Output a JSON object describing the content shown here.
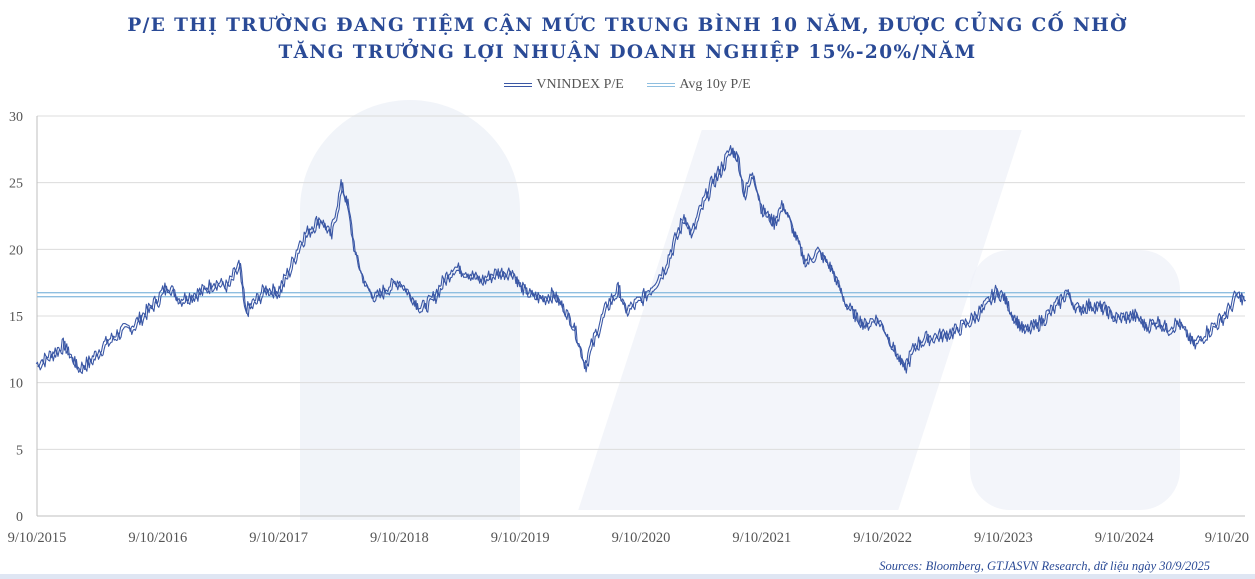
{
  "title_line1": "P/E THỊ TRƯỜNG ĐANG TIỆM CẬN MỨC TRUNG BÌNH 10 NĂM, ĐƯỢC CỦNG CỐ NHỜ",
  "title_line2": "TĂNG TRƯỞNG LỢI NHUẬN DOANH NGHIỆP 15%-20%/NĂM",
  "source": "Sources: Bloomberg, GTJASVN Research,  dữ liệu ngày 30/9/2025",
  "colors": {
    "series": "#3a57a5",
    "avg": "#8fbfe0",
    "grid": "#dcdcdc",
    "axis_text": "#555555"
  },
  "chart_data": {
    "type": "line",
    "xlabel": "",
    "ylabel": "",
    "ylim": [
      0,
      30
    ],
    "yticks": [
      "0",
      "5",
      "10",
      "15",
      "20",
      "25",
      "30"
    ],
    "xticks": [
      "9/10/2015",
      "9/10/2016",
      "9/10/2017",
      "9/10/2018",
      "9/10/2019",
      "9/10/2020",
      "9/10/2021",
      "9/10/2022",
      "9/10/2023",
      "9/10/2024",
      "9/10/20"
    ],
    "x_range": [
      "2015-09-10",
      "2025-09-10"
    ],
    "grid": true,
    "legend_position": "top-center",
    "series": [
      {
        "name": "VNINDEX P/E",
        "style": "double-line",
        "points": [
          [
            "2015-09-10",
            11.3
          ],
          [
            "2015-10-20",
            12.0
          ],
          [
            "2015-12-01",
            12.8
          ],
          [
            "2016-01-15",
            11.0
          ],
          [
            "2016-02-20",
            11.6
          ],
          [
            "2016-04-01",
            12.8
          ],
          [
            "2016-05-15",
            13.7
          ],
          [
            "2016-07-01",
            14.3
          ],
          [
            "2016-08-15",
            15.5
          ],
          [
            "2016-09-10",
            16.2
          ],
          [
            "2016-10-10",
            17.3
          ],
          [
            "2016-11-15",
            16.2
          ],
          [
            "2016-12-20",
            16.5
          ],
          [
            "2017-01-20",
            16.8
          ],
          [
            "2017-03-01",
            17.5
          ],
          [
            "2017-04-10",
            17.2
          ],
          [
            "2017-05-15",
            18.8
          ],
          [
            "2017-06-01",
            15.3
          ],
          [
            "2017-07-01",
            16.0
          ],
          [
            "2017-08-01",
            17.0
          ],
          [
            "2017-09-10",
            16.8
          ],
          [
            "2017-10-15",
            18.5
          ],
          [
            "2017-11-15",
            20.5
          ],
          [
            "2017-12-15",
            21.5
          ],
          [
            "2018-01-15",
            22.3
          ],
          [
            "2018-02-15",
            21.0
          ],
          [
            "2018-03-20",
            24.7
          ],
          [
            "2018-04-05",
            23.5
          ],
          [
            "2018-05-01",
            19.5
          ],
          [
            "2018-06-01",
            17.2
          ],
          [
            "2018-07-01",
            16.3
          ],
          [
            "2018-08-01",
            17.0
          ],
          [
            "2018-09-10",
            17.6
          ],
          [
            "2018-10-15",
            16.5
          ],
          [
            "2018-11-15",
            15.5
          ],
          [
            "2018-12-20",
            16.2
          ],
          [
            "2019-01-20",
            17.5
          ],
          [
            "2019-02-20",
            18.6
          ],
          [
            "2019-04-01",
            18.3
          ],
          [
            "2019-05-15",
            17.6
          ],
          [
            "2019-07-01",
            18.2
          ],
          [
            "2019-08-20",
            18.3
          ],
          [
            "2019-09-10",
            17.2
          ],
          [
            "2019-10-15",
            16.5
          ],
          [
            "2019-11-20",
            16.3
          ],
          [
            "2019-12-20",
            16.6
          ],
          [
            "2020-01-20",
            15.6
          ],
          [
            "2020-02-20",
            14.2
          ],
          [
            "2020-03-25",
            11.3
          ],
          [
            "2020-04-25",
            13.5
          ],
          [
            "2020-06-01",
            15.8
          ],
          [
            "2020-07-05",
            17.0
          ],
          [
            "2020-07-25",
            15.3
          ],
          [
            "2020-09-10",
            16.2
          ],
          [
            "2020-10-15",
            17.2
          ],
          [
            "2020-11-20",
            18.5
          ],
          [
            "2020-12-20",
            20.5
          ],
          [
            "2021-01-20",
            22.5
          ],
          [
            "2021-02-10",
            21.0
          ],
          [
            "2021-03-10",
            23.0
          ],
          [
            "2021-04-10",
            24.8
          ],
          [
            "2021-05-10",
            26.0
          ],
          [
            "2021-06-10",
            27.5
          ],
          [
            "2021-07-01",
            26.8
          ],
          [
            "2021-07-20",
            24.0
          ],
          [
            "2021-08-15",
            25.8
          ],
          [
            "2021-09-10",
            23.0
          ],
          [
            "2021-10-15",
            22.0
          ],
          [
            "2021-11-15",
            23.3
          ],
          [
            "2021-12-20",
            21.0
          ],
          [
            "2022-01-20",
            19.0
          ],
          [
            "2022-03-01",
            19.8
          ],
          [
            "2022-04-10",
            18.5
          ],
          [
            "2022-05-20",
            16.0
          ],
          [
            "2022-06-20",
            15.0
          ],
          [
            "2022-07-20",
            14.3
          ],
          [
            "2022-08-20",
            14.8
          ],
          [
            "2022-09-10",
            14.3
          ],
          [
            "2022-10-15",
            12.5
          ],
          [
            "2022-11-15",
            11.0
          ],
          [
            "2022-12-20",
            12.8
          ],
          [
            "2023-01-20",
            13.3
          ],
          [
            "2023-03-01",
            13.5
          ],
          [
            "2023-04-15",
            13.8
          ],
          [
            "2023-06-01",
            14.6
          ],
          [
            "2023-07-15",
            15.6
          ],
          [
            "2023-08-20",
            16.8
          ],
          [
            "2023-09-10",
            16.5
          ],
          [
            "2023-10-10",
            15.0
          ],
          [
            "2023-11-15",
            13.8
          ],
          [
            "2023-12-20",
            14.3
          ],
          [
            "2024-01-20",
            15.0
          ],
          [
            "2024-02-20",
            15.8
          ],
          [
            "2024-03-20",
            16.8
          ],
          [
            "2024-04-20",
            15.5
          ],
          [
            "2024-06-01",
            15.8
          ],
          [
            "2024-07-15",
            15.5
          ],
          [
            "2024-08-15",
            14.8
          ],
          [
            "2024-09-10",
            14.9
          ],
          [
            "2024-10-15",
            15.0
          ],
          [
            "2024-11-15",
            14.2
          ],
          [
            "2024-12-20",
            14.6
          ],
          [
            "2025-01-20",
            14.0
          ],
          [
            "2025-02-20",
            14.5
          ],
          [
            "2025-04-10",
            12.8
          ],
          [
            "2025-05-20",
            13.8
          ],
          [
            "2025-06-20",
            14.5
          ],
          [
            "2025-07-20",
            15.3
          ],
          [
            "2025-08-15",
            16.5
          ],
          [
            "2025-09-10",
            16.3
          ]
        ]
      },
      {
        "name": "Avg 10y P/E",
        "style": "double-line",
        "value": 16.6
      }
    ]
  }
}
